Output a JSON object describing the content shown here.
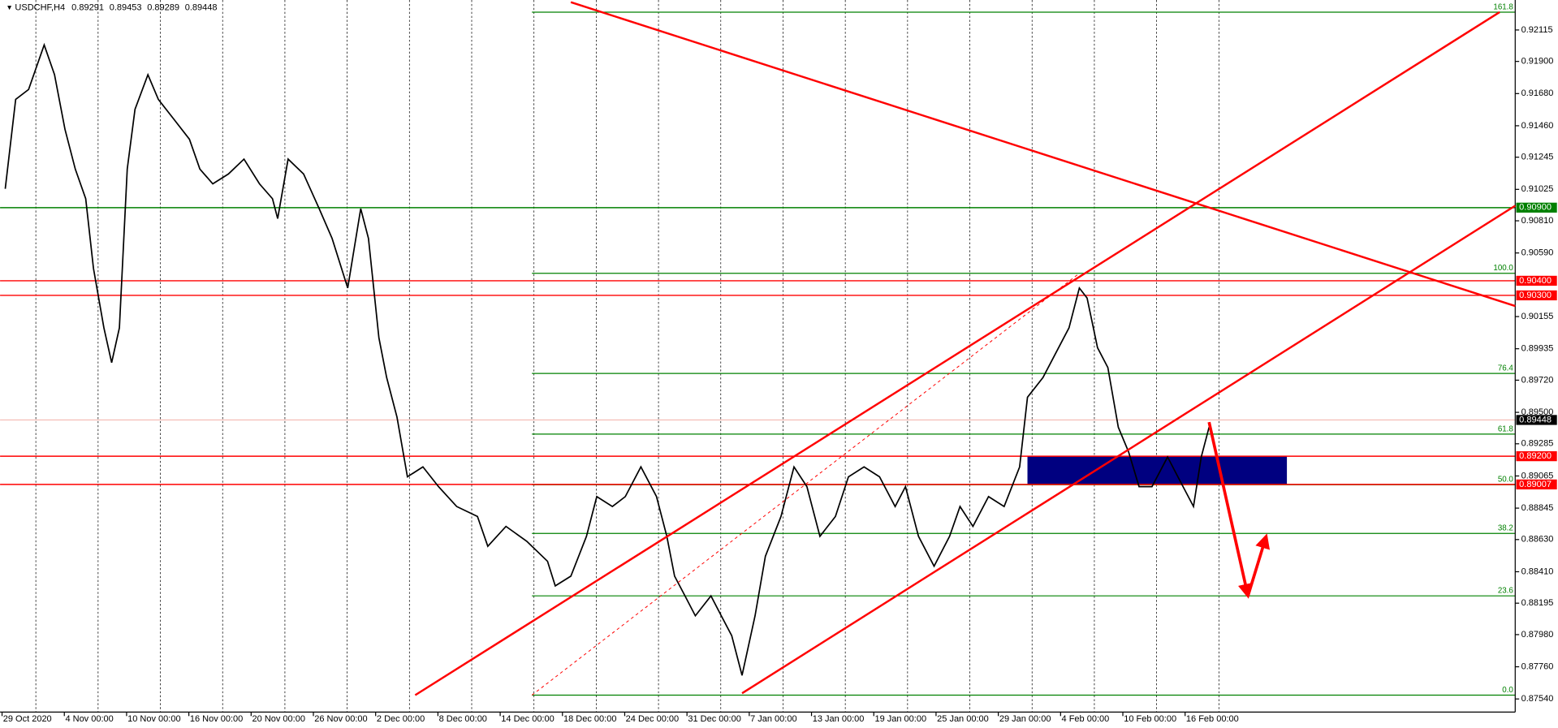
{
  "chart_data": {
    "type": "line",
    "title": "USDCHF,H4",
    "quote": [
      0.89291,
      0.89453,
      0.89289,
      0.89448
    ],
    "xlim": [
      0,
      584
    ],
    "ylim": [
      0.8745,
      0.9232
    ],
    "xticks": [
      {
        "value": 0,
        "label": "29 Oct 2020"
      },
      {
        "value": 24,
        "label": "4 Nov 00:00"
      },
      {
        "value": 48,
        "label": "10 Nov 00:00"
      },
      {
        "value": 72,
        "label": "16 Nov 00:00"
      },
      {
        "value": 96,
        "label": "20 Nov 00:00"
      },
      {
        "value": 120,
        "label": "26 Nov 00:00"
      },
      {
        "value": 144,
        "label": "2 Dec 00:00"
      },
      {
        "value": 168,
        "label": "8 Dec 00:00"
      },
      {
        "value": 192,
        "label": "14 Dec 00:00"
      },
      {
        "value": 216,
        "label": "18 Dec 00:00"
      },
      {
        "value": 240,
        "label": "24 Dec 00:00"
      },
      {
        "value": 264,
        "label": "31 Dec 00:00"
      },
      {
        "value": 288,
        "label": "7 Jan 00:00"
      },
      {
        "value": 312,
        "label": "13 Jan 00:00"
      },
      {
        "value": 336,
        "label": "19 Jan 00:00"
      },
      {
        "value": 360,
        "label": "25 Jan 00:00"
      },
      {
        "value": 384,
        "label": "29 Jan 00:00"
      },
      {
        "value": 408,
        "label": "4 Feb 00:00"
      },
      {
        "value": 432,
        "label": "10 Feb 00:00"
      },
      {
        "value": 456,
        "label": "16 Feb 00:00"
      }
    ],
    "yticks": [
      {
        "value": 0.92115,
        "label": "0.92115"
      },
      {
        "value": 0.919,
        "label": "0.91900"
      },
      {
        "value": 0.9168,
        "label": "0.91680"
      },
      {
        "value": 0.9146,
        "label": "0.91460"
      },
      {
        "value": 0.91245,
        "label": "0.91245"
      },
      {
        "value": 0.91025,
        "label": "0.91025"
      },
      {
        "value": 0.9081,
        "label": "0.90810"
      },
      {
        "value": 0.9059,
        "label": "0.90590"
      },
      {
        "value": 0.90155,
        "label": "0.90155"
      },
      {
        "value": 0.89935,
        "label": "0.89935"
      },
      {
        "value": 0.8972,
        "label": "0.89720"
      },
      {
        "value": 0.895,
        "label": "0.89500"
      },
      {
        "value": 0.89285,
        "label": "0.89285"
      },
      {
        "value": 0.89065,
        "label": "0.89065"
      },
      {
        "value": 0.88845,
        "label": "0.88845"
      },
      {
        "value": 0.8863,
        "label": "0.88630"
      },
      {
        "value": 0.8841,
        "label": "0.88410"
      },
      {
        "value": 0.88195,
        "label": "0.88195"
      },
      {
        "value": 0.8798,
        "label": "0.87980"
      },
      {
        "value": 0.8776,
        "label": "0.87760"
      },
      {
        "value": 0.8754,
        "label": "0.87540"
      }
    ],
    "grid": true,
    "x": [
      2,
      6,
      11,
      17,
      21,
      25,
      29,
      33,
      36,
      40,
      43,
      46,
      49,
      52,
      57,
      61,
      67,
      73,
      77,
      82,
      88,
      94,
      100,
      105,
      107,
      111,
      117,
      123,
      128,
      134,
      139,
      142,
      146,
      149,
      153,
      157,
      163,
      169,
      176,
      184,
      188,
      195,
      203,
      211,
      214,
      220,
      226,
      230,
      236,
      241,
      247,
      253,
      257,
      260,
      264,
      268,
      274,
      278,
      282,
      286,
      291,
      295,
      301,
      306,
      311,
      316,
      322,
      327,
      333,
      339,
      345,
      349,
      354,
      360,
      366,
      370,
      375,
      381,
      387,
      393,
      396,
      402,
      408,
      412,
      416,
      419,
      423,
      427,
      431,
      435,
      439,
      444,
      450,
      454,
      460,
      463,
      466
    ],
    "series": [
      {
        "name": "USDCHF,H4",
        "color": "#000000",
        "values": [
          0.91029,
          0.9164,
          0.91708,
          0.92013,
          0.91809,
          0.91436,
          0.91164,
          0.90961,
          0.90485,
          0.90078,
          0.8984,
          0.90078,
          0.91164,
          0.91572,
          0.91809,
          0.9164,
          0.91504,
          0.91368,
          0.91164,
          0.91063,
          0.9113,
          0.91232,
          0.91063,
          0.90961,
          0.90825,
          0.91232,
          0.9113,
          0.90893,
          0.90689,
          0.9035,
          0.90893,
          0.90689,
          0.9001,
          0.89738,
          0.89467,
          0.89059,
          0.89127,
          0.88992,
          0.88856,
          0.88788,
          0.88584,
          0.8872,
          0.88618,
          0.88482,
          0.88313,
          0.8838,
          0.88652,
          0.88924,
          0.88856,
          0.88924,
          0.89127,
          0.88924,
          0.88652,
          0.8838,
          0.88245,
          0.88109,
          0.88245,
          0.88109,
          0.87973,
          0.87701,
          0.88109,
          0.88516,
          0.88788,
          0.89127,
          0.88992,
          0.88652,
          0.88788,
          0.89059,
          0.89127,
          0.89059,
          0.88856,
          0.88992,
          0.88652,
          0.88448,
          0.88652,
          0.88856,
          0.8872,
          0.88924,
          0.88856,
          0.89127,
          0.89603,
          0.89738,
          0.89942,
          0.90078,
          0.9035,
          0.90282,
          0.89942,
          0.89806,
          0.89399,
          0.89229,
          0.88992,
          0.88992,
          0.89195,
          0.89059,
          0.88856,
          0.89195,
          0.89399
        ]
      }
    ],
    "levels": [
      {
        "value": 0.909,
        "label": "0.90900",
        "color": "#008000"
      },
      {
        "value": 0.904,
        "label": "0.90400",
        "color": "#ff0000"
      },
      {
        "value": 0.903,
        "label": "0.90300",
        "color": "#ff0000"
      },
      {
        "value": 0.892,
        "label": "0.89200",
        "color": "#ff0000"
      },
      {
        "value": 0.89007,
        "label": "0.89007",
        "color": "#ff0000"
      }
    ],
    "last": {
      "value": 0.89448,
      "label": "0.89448",
      "color": "#000000"
    },
    "fib": {
      "x": [
        205,
        584
      ],
      "color": "#008000",
      "levels": [
        {
          "value": 0.92237,
          "label": "161.8"
        },
        {
          "value": 0.90451,
          "label": "100.0"
        },
        {
          "value": 0.89766,
          "label": "76.4"
        },
        {
          "value": 0.89351,
          "label": "61.8"
        },
        {
          "value": 0.89005,
          "label": "50.0"
        },
        {
          "value": 0.88672,
          "label": "38.2"
        },
        {
          "value": 0.88245,
          "label": "23.6"
        },
        {
          "value": 0.87566,
          "label": "0.0"
        }
      ]
    },
    "lines": [
      {
        "x": [
          160,
          578
        ],
        "y": [
          0.87566,
          0.92237
        ],
        "color": "#ff0000",
        "style": "solid"
      },
      {
        "x": [
          286,
          584
        ],
        "y": [
          0.87579,
          0.90913
        ],
        "color": "#ff0000",
        "style": "solid"
      },
      {
        "x": [
          220,
          584
        ],
        "y": [
          0.92305,
          0.90227
        ],
        "color": "#ff0000",
        "style": "solid"
      },
      {
        "x": [
          205,
          416
        ],
        "y": [
          0.87566,
          0.90451
        ],
        "color": "#ff0000",
        "style": "dotted"
      }
    ],
    "arrow": {
      "x": [
        466,
        481,
        488
      ],
      "y": [
        0.89433,
        0.88245,
        0.88652
      ],
      "color": "#ff0000"
    },
    "zone": {
      "x": [
        396,
        496
      ],
      "y": [
        0.89007,
        0.892
      ],
      "color": "#000080"
    }
  }
}
